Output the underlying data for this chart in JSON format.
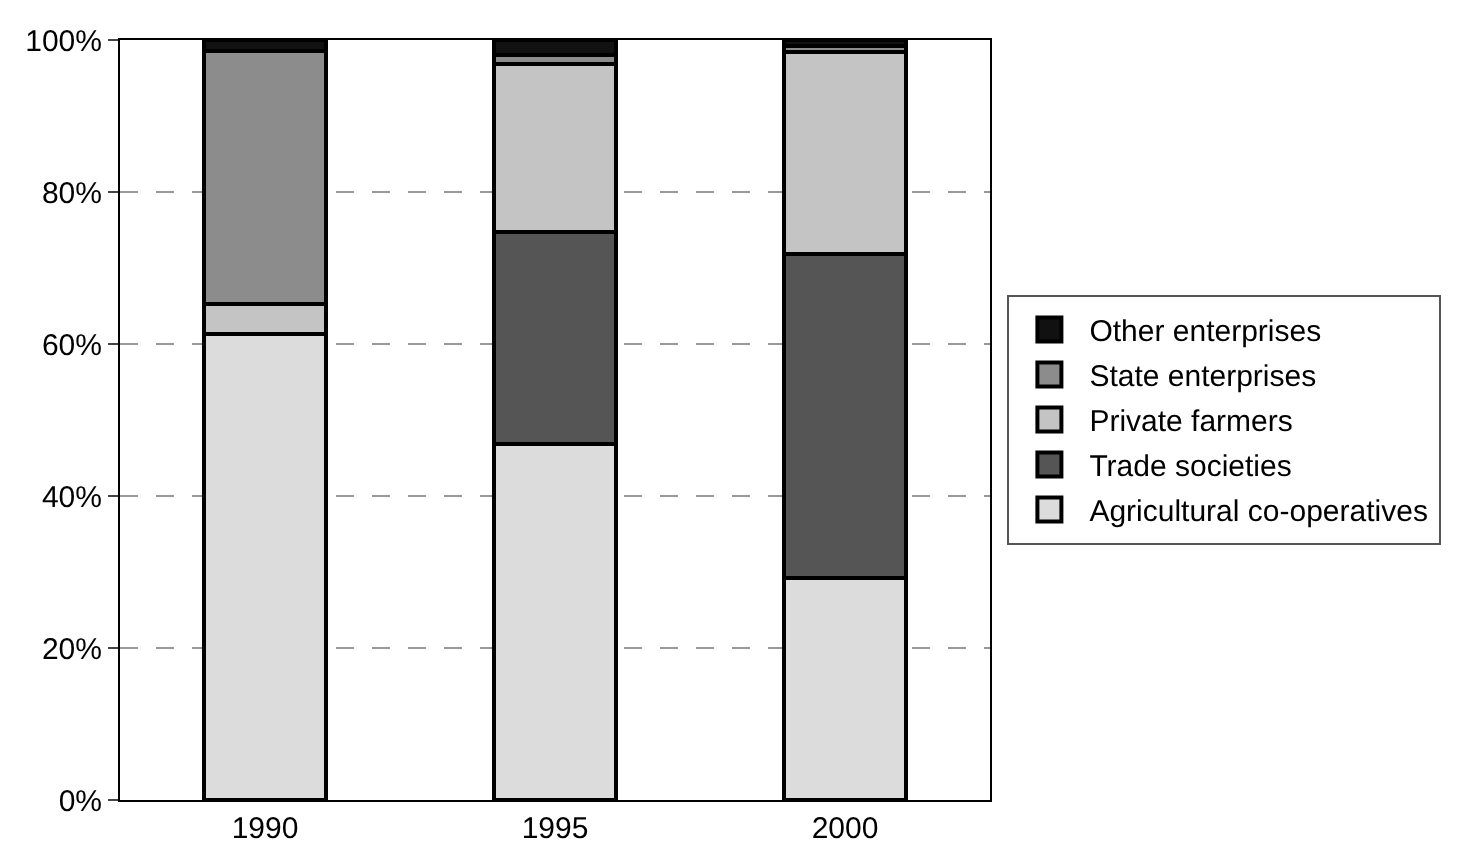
{
  "chart_data": {
    "type": "bar",
    "stacked": true,
    "categories": [
      "1990",
      "1995",
      "2000"
    ],
    "series": [
      {
        "name": "Agricultural co-operatives",
        "color": "#dcdcdc",
        "values": [
          61.3,
          46.8,
          29.2
        ]
      },
      {
        "name": "Trade societies",
        "color": "#555555",
        "values": [
          0,
          27.9,
          42.6
        ]
      },
      {
        "name": "Private farmers",
        "color": "#c4c4c4",
        "values": [
          4,
          22.1,
          26.6
        ]
      },
      {
        "name": "State enterprises",
        "color": "#8c8c8c",
        "values": [
          33.2,
          1.2,
          0.8
        ]
      },
      {
        "name": "Other enterprises",
        "color": "#111111",
        "values": [
          1.5,
          2,
          0.8
        ]
      }
    ],
    "ylim": [
      0,
      100
    ],
    "yticks": [
      {
        "value": 0,
        "label": "0%"
      },
      {
        "value": 20,
        "label": "20%"
      },
      {
        "value": 40,
        "label": "40%"
      },
      {
        "value": 60,
        "label": "60%"
      },
      {
        "value": 80,
        "label": "80%"
      },
      {
        "value": 100,
        "label": "100%"
      }
    ],
    "grid": "y",
    "legend": "right"
  }
}
